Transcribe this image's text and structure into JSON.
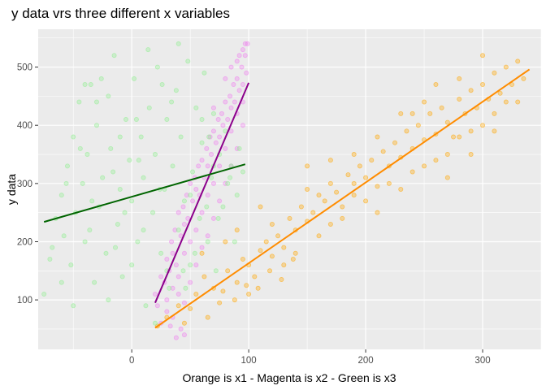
{
  "chart_data": {
    "type": "scatter",
    "title": "y data vrs three different x variables",
    "xlabel": "Orange is x1 - Magenta is x2 - Green is x3",
    "ylabel": "y data",
    "xlim": [
      -80,
      350
    ],
    "ylim": [
      15,
      565
    ],
    "x_ticks": [
      0,
      100,
      200,
      300
    ],
    "y_ticks": [
      100,
      200,
      300,
      400,
      500
    ],
    "grid": true,
    "background": "#EBEBEB",
    "series": [
      {
        "color": "#FFA500",
        "points_description": "x1 cloud",
        "points": [
          [
            22,
            55
          ],
          [
            30,
            70
          ],
          [
            40,
            90
          ],
          [
            55,
            110
          ],
          [
            62,
            140
          ],
          [
            70,
            120
          ],
          [
            75,
            95
          ],
          [
            82,
            150
          ],
          [
            90,
            130
          ],
          [
            95,
            170
          ],
          [
            100,
            160
          ],
          [
            105,
            140
          ],
          [
            110,
            185
          ],
          [
            115,
            200
          ],
          [
            120,
            175
          ],
          [
            125,
            210
          ],
          [
            130,
            190
          ],
          [
            135,
            240
          ],
          [
            140,
            220
          ],
          [
            145,
            260
          ],
          [
            150,
            235
          ],
          [
            155,
            250
          ],
          [
            160,
            280
          ],
          [
            165,
            270
          ],
          [
            170,
            300
          ],
          [
            175,
            285
          ],
          [
            180,
            260
          ],
          [
            185,
            315
          ],
          [
            190,
            300
          ],
          [
            195,
            330
          ],
          [
            200,
            310
          ],
          [
            205,
            340
          ],
          [
            210,
            295
          ],
          [
            215,
            355
          ],
          [
            220,
            330
          ],
          [
            225,
            370
          ],
          [
            230,
            345
          ],
          [
            235,
            390
          ],
          [
            240,
            360
          ],
          [
            245,
            400
          ],
          [
            250,
            375
          ],
          [
            255,
            420
          ],
          [
            260,
            385
          ],
          [
            265,
            430
          ],
          [
            270,
            405
          ],
          [
            275,
            380
          ],
          [
            280,
            445
          ],
          [
            285,
            420
          ],
          [
            290,
            460
          ],
          [
            295,
            430
          ],
          [
            300,
            470
          ],
          [
            305,
            445
          ],
          [
            310,
            490
          ],
          [
            315,
            455
          ],
          [
            320,
            500
          ],
          [
            325,
            470
          ],
          [
            330,
            510
          ],
          [
            335,
            480
          ],
          [
            90,
            220
          ],
          [
            110,
            260
          ],
          [
            130,
            160
          ],
          [
            150,
            290
          ],
          [
            170,
            230
          ],
          [
            190,
            350
          ],
          [
            210,
            380
          ],
          [
            230,
            290
          ],
          [
            250,
            440
          ],
          [
            270,
            350
          ],
          [
            290,
            390
          ],
          [
            310,
            420
          ],
          [
            180,
            240
          ],
          [
            200,
            270
          ],
          [
            220,
            300
          ],
          [
            240,
            320
          ],
          [
            60,
            180
          ],
          [
            80,
            200
          ],
          [
            100,
            110
          ],
          [
            120,
            230
          ],
          [
            140,
            180
          ],
          [
            160,
            210
          ],
          [
            260,
            340
          ],
          [
            280,
            380
          ],
          [
            300,
            400
          ],
          [
            320,
            440
          ],
          [
            240,
            420
          ],
          [
            260,
            470
          ],
          [
            280,
            480
          ],
          [
            300,
            520
          ],
          [
            150,
            330
          ],
          [
            170,
            340
          ],
          [
            190,
            280
          ],
          [
            210,
            250
          ],
          [
            230,
            420
          ],
          [
            250,
            330
          ],
          [
            270,
            310
          ],
          [
            290,
            350
          ],
          [
            310,
            390
          ],
          [
            330,
            440
          ],
          [
            45,
            60
          ],
          [
            50,
            85
          ],
          [
            65,
            70
          ],
          [
            78,
            115
          ],
          [
            88,
            100
          ],
          [
            98,
            125
          ],
          [
            108,
            120
          ],
          [
            118,
            150
          ],
          [
            128,
            135
          ],
          [
            138,
            170
          ]
        ],
        "line": {
          "color": "#FF8C00",
          "x": [
            20,
            340
          ],
          "y": [
            52,
            496
          ]
        }
      },
      {
        "color": "#EE82EE",
        "points_description": "x2 cloud",
        "points": [
          [
            20,
            110
          ],
          [
            22,
            90
          ],
          [
            25,
            140
          ],
          [
            28,
            130
          ],
          [
            30,
            170
          ],
          [
            32,
            150
          ],
          [
            34,
            200
          ],
          [
            35,
            180
          ],
          [
            37,
            220
          ],
          [
            38,
            160
          ],
          [
            40,
            250
          ],
          [
            42,
            210
          ],
          [
            44,
            260
          ],
          [
            45,
            230
          ],
          [
            47,
            280
          ],
          [
            48,
            240
          ],
          [
            50,
            300
          ],
          [
            52,
            270
          ],
          [
            54,
            310
          ],
          [
            55,
            290
          ],
          [
            57,
            330
          ],
          [
            58,
            280
          ],
          [
            60,
            340
          ],
          [
            62,
            310
          ],
          [
            64,
            360
          ],
          [
            65,
            330
          ],
          [
            67,
            380
          ],
          [
            68,
            350
          ],
          [
            70,
            390
          ],
          [
            72,
            370
          ],
          [
            74,
            410
          ],
          [
            75,
            380
          ],
          [
            77,
            420
          ],
          [
            78,
            400
          ],
          [
            80,
            440
          ],
          [
            82,
            410
          ],
          [
            84,
            450
          ],
          [
            85,
            430
          ],
          [
            87,
            470
          ],
          [
            88,
            440
          ],
          [
            90,
            480
          ],
          [
            92,
            460
          ],
          [
            94,
            500
          ],
          [
            95,
            470
          ],
          [
            97,
            520
          ],
          [
            98,
            490
          ],
          [
            99,
            540
          ],
          [
            30,
            100
          ],
          [
            35,
            120
          ],
          [
            40,
            140
          ],
          [
            45,
            180
          ],
          [
            50,
            200
          ],
          [
            55,
            220
          ],
          [
            60,
            250
          ],
          [
            65,
            280
          ],
          [
            70,
            300
          ],
          [
            75,
            330
          ],
          [
            80,
            360
          ],
          [
            85,
            390
          ],
          [
            90,
            420
          ],
          [
            95,
            440
          ],
          [
            25,
            60
          ],
          [
            30,
            80
          ],
          [
            35,
            70
          ],
          [
            40,
            110
          ],
          [
            42,
            50
          ],
          [
            45,
            95
          ],
          [
            50,
            130
          ],
          [
            55,
            160
          ],
          [
            60,
            190
          ],
          [
            65,
            210
          ],
          [
            70,
            240
          ],
          [
            75,
            270
          ],
          [
            80,
            300
          ],
          [
            85,
            330
          ],
          [
            90,
            360
          ],
          [
            95,
            400
          ],
          [
            38,
            35
          ],
          [
            45,
            40
          ],
          [
            33,
            55
          ],
          [
            70,
            430
          ],
          [
            80,
            480
          ],
          [
            85,
            500
          ],
          [
            90,
            510
          ],
          [
            92,
            520
          ],
          [
            95,
            530
          ],
          [
            97,
            540
          ]
        ],
        "line": {
          "color": "#8B008B",
          "x": [
            20,
            100
          ],
          "y": [
            95,
            473
          ]
        }
      },
      {
        "color": "#90EE90",
        "points_description": "x3 cloud",
        "points": [
          [
            -75,
            110
          ],
          [
            -70,
            170
          ],
          [
            -65,
            240
          ],
          [
            -60,
            280
          ],
          [
            -58,
            210
          ],
          [
            -55,
            330
          ],
          [
            -52,
            160
          ],
          [
            -50,
            380
          ],
          [
            -48,
            250
          ],
          [
            -45,
            440
          ],
          [
            -42,
            300
          ],
          [
            -40,
            200
          ],
          [
            -38,
            350
          ],
          [
            -35,
            470
          ],
          [
            -32,
            130
          ],
          [
            -30,
            400
          ],
          [
            -28,
            260
          ],
          [
            -25,
            310
          ],
          [
            -22,
            180
          ],
          [
            -20,
            450
          ],
          [
            -18,
            360
          ],
          [
            -15,
            520
          ],
          [
            -12,
            230
          ],
          [
            -10,
            290
          ],
          [
            -8,
            140
          ],
          [
            -5,
            410
          ],
          [
            -2,
            340
          ],
          [
            0,
            270
          ],
          [
            2,
            480
          ],
          [
            5,
            200
          ],
          [
            8,
            380
          ],
          [
            10,
            310
          ],
          [
            12,
            90
          ],
          [
            15,
            430
          ],
          [
            18,
            250
          ],
          [
            20,
            350
          ],
          [
            22,
            500
          ],
          [
            25,
            180
          ],
          [
            28,
            290
          ],
          [
            30,
            410
          ],
          [
            32,
            120
          ],
          [
            35,
            330
          ],
          [
            38,
            460
          ],
          [
            40,
            220
          ],
          [
            42,
            380
          ],
          [
            45,
            270
          ],
          [
            48,
            510
          ],
          [
            50,
            160
          ],
          [
            52,
            320
          ],
          [
            55,
            430
          ],
          [
            58,
            240
          ],
          [
            60,
            370
          ],
          [
            62,
            490
          ],
          [
            65,
            200
          ],
          [
            68,
            310
          ],
          [
            70,
            420
          ],
          [
            72,
            150
          ],
          [
            75,
            350
          ],
          [
            78,
            260
          ],
          [
            80,
            390
          ],
          [
            82,
            300
          ],
          [
            85,
            330
          ],
          [
            88,
            200
          ],
          [
            90,
            280
          ],
          [
            92,
            360
          ],
          [
            95,
            320
          ],
          [
            -60,
            130
          ],
          [
            -40,
            470
          ],
          [
            -20,
            100
          ],
          [
            0,
            160
          ],
          [
            20,
            60
          ],
          [
            40,
            540
          ],
          [
            60,
            410
          ],
          [
            -50,
            90
          ],
          [
            -30,
            440
          ],
          [
            -10,
            380
          ],
          [
            10,
            220
          ],
          [
            30,
            150
          ],
          [
            50,
            280
          ],
          [
            70,
            330
          ],
          [
            -68,
            190
          ],
          [
            -44,
            360
          ],
          [
            -26,
            480
          ],
          [
            -6,
            250
          ],
          [
            14,
            530
          ],
          [
            34,
            440
          ],
          [
            54,
            180
          ],
          [
            74,
            240
          ],
          [
            -36,
            220
          ],
          [
            -16,
            320
          ],
          [
            4,
            410
          ],
          [
            24,
            290
          ],
          [
            44,
            150
          ],
          [
            64,
            260
          ],
          [
            84,
            310
          ],
          [
            -56,
            300
          ],
          [
            -34,
            270
          ],
          [
            -14,
            190
          ],
          [
            6,
            340
          ],
          [
            26,
            470
          ],
          [
            46,
            120
          ],
          [
            66,
            380
          ]
        ],
        "line": {
          "color": "#006400",
          "x": [
            -75,
            97
          ],
          "y": [
            234,
            333
          ]
        }
      }
    ]
  }
}
